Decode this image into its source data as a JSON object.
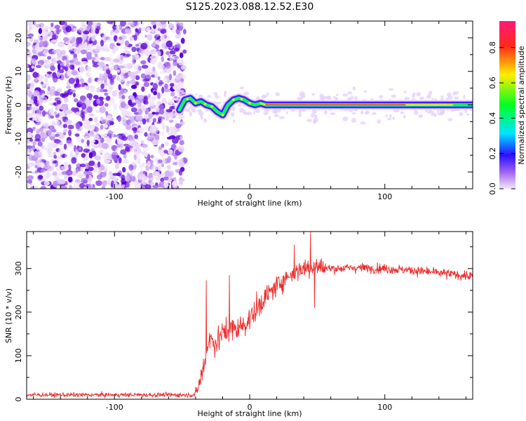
{
  "title": "S125.2023.088.12.52.E30",
  "colors": {
    "snr_line": "#ee2a2a",
    "colormap": [
      "#f4e6fb",
      "#7a00e0",
      "#1010ff",
      "#00e5ff",
      "#00ff20",
      "#ffee00",
      "#ff2a1a",
      "#ff1a7a"
    ]
  },
  "chart_data": [
    {
      "type": "heatmap",
      "name": "spectrogram",
      "title": "S125.2023.088.12.52.E30",
      "xlabel": "Height of straight line (km)",
      "ylabel": "Frequency (Hz)",
      "xlim": [
        -165,
        165
      ],
      "ylim": [
        -25,
        25
      ],
      "xticks": [
        -100,
        0,
        100
      ],
      "yticks": [
        -20,
        -10,
        0,
        10,
        20
      ],
      "noise_region_x": [
        -165,
        -52
      ],
      "ridge_frequency_profile": {
        "x": [
          -52,
          -48,
          -44,
          -40,
          -36,
          -32,
          -28,
          -24,
          -20,
          -16,
          -12,
          -8,
          -4,
          0,
          4,
          8,
          12,
          165
        ],
        "freq": [
          -1.5,
          1.5,
          2.0,
          0.5,
          1.0,
          0.0,
          -0.5,
          -2.0,
          -3.0,
          0.0,
          1.5,
          2.0,
          1.5,
          0.5,
          0.0,
          0.5,
          0.0,
          0.0
        ]
      },
      "colorbar": {
        "label": "Normalized spectral amplitude",
        "range": [
          0.0,
          0.95
        ],
        "ticks": [
          0.0,
          0.2,
          0.4,
          0.6,
          0.8
        ]
      },
      "grid": false
    },
    {
      "type": "line",
      "name": "snr",
      "xlabel": "Height of straight line (km)",
      "ylabel": "SNR (10 * v/v)",
      "xlim": [
        -165,
        165
      ],
      "ylim": [
        0,
        385
      ],
      "xticks": [
        -100,
        0,
        100
      ],
      "yticks": [
        0,
        100,
        200,
        300
      ],
      "envelope": {
        "x": [
          -165,
          -40,
          -35,
          -30,
          -25,
          -20,
          -15,
          -10,
          -5,
          0,
          5,
          10,
          15,
          20,
          25,
          30,
          35,
          40,
          45,
          50,
          60,
          80,
          100,
          120,
          140,
          165
        ],
        "mean": [
          10,
          10,
          60,
          140,
          130,
          150,
          160,
          160,
          170,
          185,
          205,
          230,
          245,
          260,
          275,
          285,
          295,
          300,
          305,
          305,
          300,
          302,
          300,
          296,
          290,
          282
        ]
      },
      "spikes": [
        {
          "x": -32,
          "y": 273
        },
        {
          "x": -15,
          "y": 285
        },
        {
          "x": 33,
          "y": 355
        },
        {
          "x": 45,
          "y": 385
        },
        {
          "x": 48,
          "y": 210
        }
      ],
      "grid": false
    }
  ]
}
